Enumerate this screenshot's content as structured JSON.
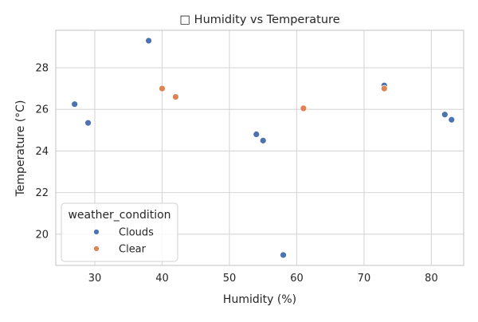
{
  "chart_data": {
    "type": "scatter",
    "title": "□ Humidity vs Temperature",
    "xlabel": "Humidity (%)",
    "ylabel": "Temperature (°C)",
    "xlim": [
      24.2,
      84.8
    ],
    "ylim": [
      18.5,
      29.8
    ],
    "xticks": [
      30,
      40,
      50,
      60,
      70,
      80
    ],
    "yticks": [
      20,
      22,
      24,
      26,
      28
    ],
    "grid": true,
    "legend": {
      "title": "weather_condition",
      "placement": "lower-left"
    },
    "series": [
      {
        "name": "Clouds",
        "color": "#4c72b0",
        "points": [
          {
            "x": 27,
            "y": 26.25
          },
          {
            "x": 29,
            "y": 25.35
          },
          {
            "x": 38,
            "y": 29.3
          },
          {
            "x": 54,
            "y": 24.8
          },
          {
            "x": 55,
            "y": 24.5
          },
          {
            "x": 58,
            "y": 19.0
          },
          {
            "x": 73,
            "y": 27.15
          },
          {
            "x": 82,
            "y": 25.75
          },
          {
            "x": 83,
            "y": 25.5
          }
        ]
      },
      {
        "name": "Clear",
        "color": "#dd8452",
        "points": [
          {
            "x": 40,
            "y": 27.0
          },
          {
            "x": 42,
            "y": 26.6
          },
          {
            "x": 61,
            "y": 26.05
          },
          {
            "x": 73,
            "y": 27.0
          }
        ]
      }
    ]
  }
}
